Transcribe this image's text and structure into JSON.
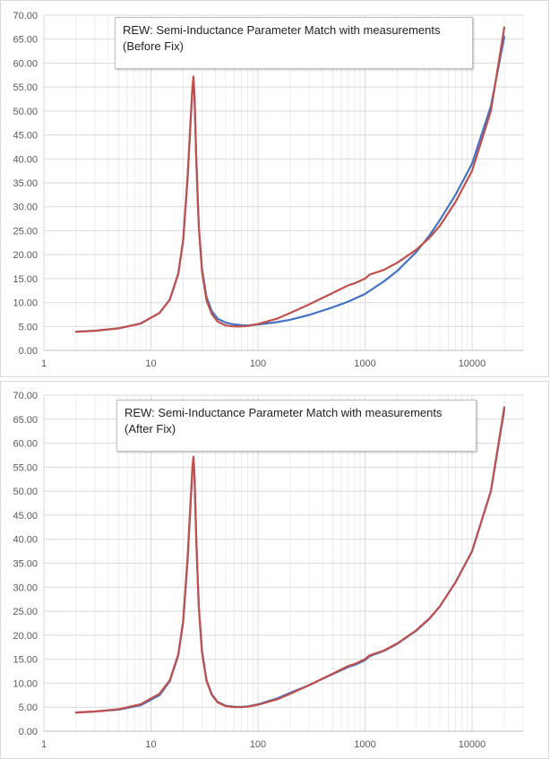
{
  "colors": {
    "measured": "#4472c4",
    "simulated": "#c0504d",
    "grid": "#d9d9d9"
  },
  "charts": [
    {
      "title_line1": "REW: Semi-Inductance Parameter Match with measurements",
      "title_line2": "(Before Fix)",
      "chart_data": {
        "type": "line",
        "xscale": "log",
        "xlim": [
          1,
          30000
        ],
        "ylim": [
          0,
          70
        ],
        "x_ticks": [
          "1",
          "10",
          "100",
          "1000",
          "10000"
        ],
        "y_ticks": [
          "0.00",
          "5.00",
          "10.00",
          "15.00",
          "20.00",
          "25.00",
          "30.00",
          "35.00",
          "40.00",
          "45.00",
          "50.00",
          "55.00",
          "60.00",
          "65.00",
          "70.00"
        ],
        "grid": "major and minor vertical, major horizontal",
        "legend": "none",
        "series": [
          {
            "color": "#4472c4",
            "x": [
              2,
              3,
              5,
              8,
              12,
              15,
              18,
              20,
              22,
              23.5,
              24.5,
              25,
              25.5,
              26.5,
              28,
              30,
              33,
              37,
              42,
              50,
              60,
              70,
              80,
              100,
              150,
              200,
              300,
              500,
              700,
              1000,
              1500,
              2000,
              3000,
              4000,
              5000,
              7000,
              10000,
              15000,
              20000
            ],
            "y": [
              3.9,
              4.1,
              4.6,
              5.6,
              7.8,
              10.6,
              16.0,
              23.0,
              36.0,
              48.0,
              55.0,
              56.2,
              53.0,
              40.0,
              26.0,
              17.0,
              11.2,
              8.2,
              6.6,
              5.8,
              5.4,
              5.25,
              5.2,
              5.4,
              5.9,
              6.4,
              7.4,
              9.0,
              10.2,
              11.8,
              14.4,
              16.6,
              20.5,
              24.0,
              27.2,
              32.5,
              39.0,
              51.0,
              65.5
            ]
          },
          {
            "color": "#c0504d",
            "x": [
              2,
              3,
              5,
              8,
              12,
              15,
              18,
              20,
              22,
              23.5,
              24.5,
              25,
              25.5,
              26.5,
              28,
              30,
              33,
              37,
              42,
              50,
              60,
              70,
              80,
              100,
              150,
              200,
              300,
              500,
              700,
              800,
              1000,
              1100,
              1500,
              2000,
              3000,
              4000,
              5000,
              7000,
              10000,
              15000,
              20000
            ],
            "y": [
              3.9,
              4.1,
              4.6,
              5.6,
              7.8,
              10.6,
              16.0,
              23.0,
              36.0,
              48.0,
              55.5,
              57.2,
              53.5,
              40.0,
              26.0,
              16.5,
              10.5,
              7.6,
              6.0,
              5.2,
              5.0,
              5.0,
              5.1,
              5.5,
              6.6,
              7.8,
              9.6,
              12.0,
              13.6,
              14.0,
              15.0,
              15.8,
              16.8,
              18.3,
              21.0,
              23.5,
              26.0,
              31.0,
              37.5,
              50.0,
              67.5
            ]
          }
        ]
      }
    },
    {
      "title_line1": "REW: Semi-Inductance Parameter Match with measurements",
      "title_line2": "(After Fix)",
      "chart_data": {
        "type": "line",
        "xscale": "log",
        "xlim": [
          1,
          30000
        ],
        "ylim": [
          0,
          70
        ],
        "x_ticks": [
          "1",
          "10",
          "100",
          "1000",
          "10000"
        ],
        "y_ticks": [
          "0.00",
          "5.00",
          "10.00",
          "15.00",
          "20.00",
          "25.00",
          "30.00",
          "35.00",
          "40.00",
          "45.00",
          "50.00",
          "55.00",
          "60.00",
          "65.00",
          "70.00"
        ],
        "grid": "major and minor vertical, major horizontal",
        "legend": "none",
        "series": [
          {
            "color": "#4472c4",
            "x": [
              2,
              3,
              5,
              8,
              12,
              15,
              18,
              20,
              22,
              23.5,
              24.5,
              25,
              25.5,
              26.5,
              28,
              30,
              33,
              37,
              42,
              50,
              60,
              70,
              80,
              100,
              150,
              200,
              300,
              500,
              700,
              800,
              1000,
              1100,
              1500,
              2000,
              3000,
              4000,
              5000,
              7000,
              10000,
              15000,
              20000
            ],
            "y": [
              3.9,
              4.1,
              4.5,
              5.4,
              7.5,
              10.4,
              15.8,
              22.8,
              35.5,
              47.5,
              55.0,
              56.4,
              53.0,
              40.0,
              26.0,
              16.6,
              10.7,
              7.7,
              6.1,
              5.3,
              5.1,
              5.05,
              5.15,
              5.6,
              6.8,
              8.0,
              9.6,
              11.9,
              13.4,
              13.8,
              14.8,
              15.6,
              16.7,
              18.2,
              20.9,
              23.4,
              26.0,
              31.0,
              37.5,
              50.0,
              67.0
            ]
          },
          {
            "color": "#c0504d",
            "x": [
              2,
              3,
              5,
              8,
              12,
              15,
              18,
              20,
              22,
              23.5,
              24.5,
              25,
              25.5,
              26.5,
              28,
              30,
              33,
              37,
              42,
              50,
              60,
              70,
              80,
              100,
              150,
              200,
              300,
              500,
              700,
              800,
              1000,
              1100,
              1500,
              2000,
              3000,
              4000,
              5000,
              7000,
              10000,
              15000,
              20000
            ],
            "y": [
              3.9,
              4.1,
              4.6,
              5.6,
              7.8,
              10.6,
              16.0,
              23.0,
              36.0,
              48.0,
              55.5,
              57.2,
              53.5,
              40.0,
              26.0,
              16.5,
              10.5,
              7.6,
              6.0,
              5.2,
              5.0,
              5.0,
              5.1,
              5.5,
              6.6,
              7.8,
              9.6,
              12.0,
              13.6,
              14.0,
              15.0,
              15.8,
              16.8,
              18.3,
              21.0,
              23.5,
              26.0,
              31.0,
              37.5,
              50.0,
              67.5
            ]
          }
        ]
      }
    }
  ]
}
